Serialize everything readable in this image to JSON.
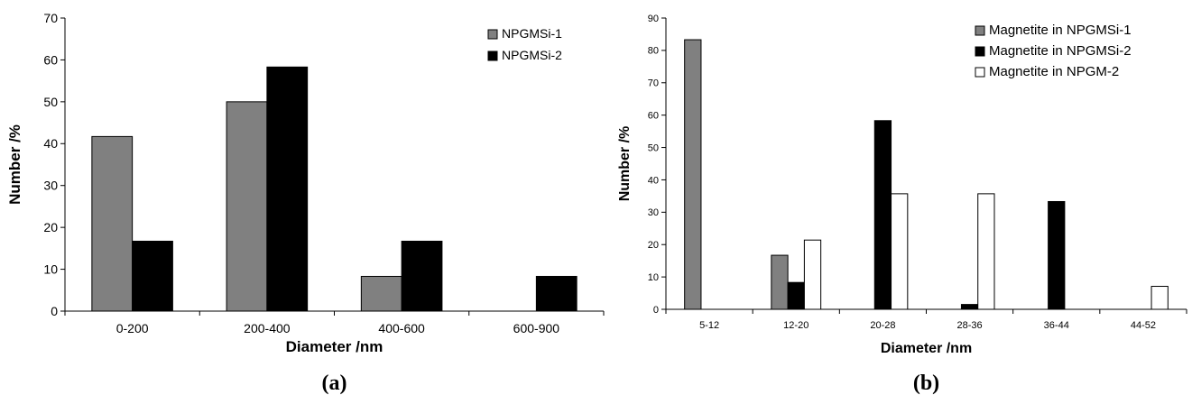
{
  "chart_data": [
    {
      "type": "bar",
      "panel_label": "(a)",
      "xlabel": "Diameter /nm",
      "ylabel": "Number /%",
      "ylim": [
        0,
        70
      ],
      "yticks": [
        0,
        10,
        20,
        30,
        40,
        50,
        60,
        70
      ],
      "grid": false,
      "legend": "top-right",
      "categories": [
        "0-200",
        "200-400",
        "400-600",
        "600-900"
      ],
      "series": [
        {
          "name": "NPGMSi-1",
          "color": "#808080",
          "values": [
            41.7,
            50.0,
            8.3,
            0
          ]
        },
        {
          "name": "NPGMSi-2",
          "color": "#000000",
          "values": [
            16.7,
            58.3,
            16.7,
            8.3
          ]
        }
      ]
    },
    {
      "type": "bar",
      "panel_label": "(b)",
      "xlabel": "Diameter /nm",
      "ylabel": "Number /%",
      "ylim": [
        0,
        90
      ],
      "yticks": [
        0,
        10,
        20,
        30,
        40,
        50,
        60,
        70,
        80,
        90
      ],
      "grid": false,
      "legend": "top-right",
      "categories": [
        "5-12",
        "12-20",
        "20-28",
        "28-36",
        "36-44",
        "44-52"
      ],
      "series": [
        {
          "name": "Magnetite in NPGMSi-1",
          "color": "#808080",
          "values": [
            83.3,
            16.7,
            0,
            0,
            0,
            0
          ]
        },
        {
          "name": "Magnetite in NPGMSi-2",
          "color": "#000000",
          "values": [
            0,
            8.3,
            58.3,
            1.5,
            33.3,
            0
          ]
        },
        {
          "name": "Magnetite in NPGM-2",
          "color": "#ffffff",
          "values": [
            0,
            21.4,
            35.7,
            35.7,
            0,
            7.1
          ]
        }
      ]
    }
  ]
}
